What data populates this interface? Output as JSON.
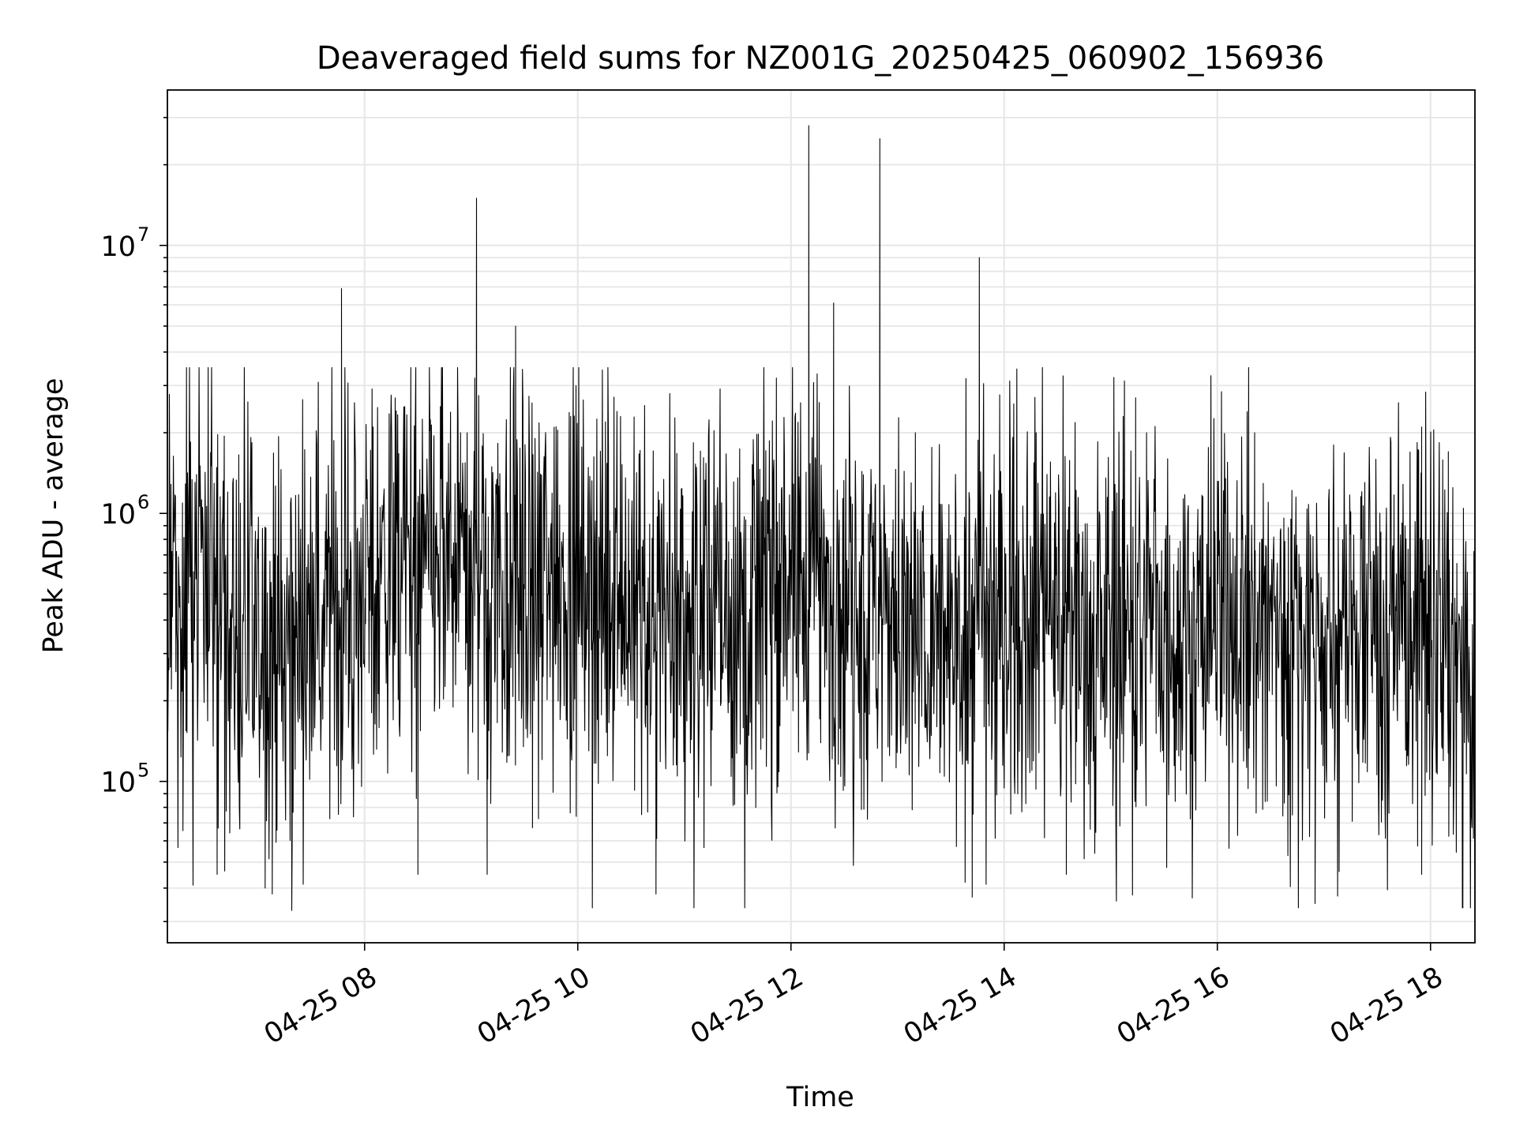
{
  "chart_data": {
    "type": "line",
    "title": "Deaveraged field sums for NZ001G_20250425_060902_156936",
    "xlabel": "Time",
    "ylabel": "Peak ADU - average",
    "xlim": [
      "2025-04-25 06:09",
      "2025-04-25 18:25"
    ],
    "ylim": [
      25000,
      38000000
    ],
    "yscale": "log",
    "grid": true,
    "line_color": "#000000",
    "grid_color": "#e6e6e6",
    "x_ticks": [
      {
        "time": "2025-04-25 08:00",
        "label": "04-25 08"
      },
      {
        "time": "2025-04-25 10:00",
        "label": "04-25 10"
      },
      {
        "time": "2025-04-25 12:00",
        "label": "04-25 12"
      },
      {
        "time": "2025-04-25 14:00",
        "label": "04-25 14"
      },
      {
        "time": "2025-04-25 16:00",
        "label": "04-25 16"
      },
      {
        "time": "2025-04-25 18:00",
        "label": "04-25 18"
      }
    ],
    "y_ticks": [
      {
        "value": 100000,
        "base": "10",
        "exp": "5"
      },
      {
        "value": 1000000,
        "base": "10",
        "exp": "6"
      },
      {
        "value": 10000000,
        "base": "10",
        "exp": "7"
      }
    ],
    "baseline": [
      [
        "2025-04-25 06:09",
        450000
      ],
      [
        "2025-04-25 06:20",
        450000
      ],
      [
        "2025-04-25 06:30",
        700000
      ],
      [
        "2025-04-25 06:45",
        350000
      ],
      [
        "2025-04-25 07:00",
        330000
      ],
      [
        "2025-04-25 07:20",
        350000
      ],
      [
        "2025-04-25 07:40",
        450000
      ],
      [
        "2025-04-25 08:00",
        600000
      ],
      [
        "2025-04-25 09:00",
        650000
      ],
      [
        "2025-04-25 09:30",
        550000
      ],
      [
        "2025-04-25 10:00",
        650000
      ],
      [
        "2025-04-25 10:40",
        420000
      ],
      [
        "2025-04-25 11:30",
        450000
      ],
      [
        "2025-04-25 12:00",
        650000
      ],
      [
        "2025-04-25 12:40",
        450000
      ],
      [
        "2025-04-25 13:20",
        320000
      ],
      [
        "2025-04-25 14:00",
        480000
      ],
      [
        "2025-04-25 15:00",
        380000
      ],
      [
        "2025-04-25 16:00",
        400000
      ],
      [
        "2025-04-25 17:00",
        350000
      ],
      [
        "2025-04-25 18:00",
        420000
      ],
      [
        "2025-04-25 18:20",
        200000
      ],
      [
        "2025-04-25 18:25",
        120000
      ]
    ],
    "spikes": [
      [
        "2025-04-25 07:47",
        6900000
      ],
      [
        "2025-04-25 09:03",
        15000000
      ],
      [
        "2025-04-25 09:02",
        3200000
      ],
      [
        "2025-04-25 09:25",
        5000000
      ],
      [
        "2025-04-25 09:59",
        3000000
      ],
      [
        "2025-04-25 09:56",
        2300000
      ],
      [
        "2025-04-25 12:10",
        28000000
      ],
      [
        "2025-04-25 12:24",
        6100000
      ],
      [
        "2025-04-25 12:50",
        25000000
      ],
      [
        "2025-04-25 13:46",
        9000000
      ],
      [
        "2025-04-25 15:14",
        2700000
      ],
      [
        "2025-04-25 15:07",
        2300000
      ],
      [
        "2025-04-25 17:55",
        2100000
      ],
      [
        "2025-04-25 08:54",
        2000000
      ],
      [
        "2025-04-25 14:18",
        2000000
      ],
      [
        "2025-04-25 13:10",
        2000000
      ],
      [
        "2025-04-25 16:21",
        2000000
      ],
      [
        "2025-04-25 18:10",
        1700000
      ]
    ],
    "dips": [
      [
        "2025-04-25 06:37",
        45000
      ],
      [
        "2025-04-25 07:04",
        40000
      ],
      [
        "2025-04-25 07:08",
        38000
      ],
      [
        "2025-04-25 07:19",
        33000
      ],
      [
        "2025-04-25 08:30",
        45000
      ],
      [
        "2025-04-25 09:09",
        45000
      ],
      [
        "2025-04-25 10:44",
        38000
      ],
      [
        "2025-04-25 13:38",
        42000
      ],
      [
        "2025-04-25 13:42",
        37000
      ],
      [
        "2025-04-25 16:55",
        35000
      ],
      [
        "2025-04-25 17:55",
        45000
      ],
      [
        "2025-04-25 14:35",
        45000
      ]
    ]
  }
}
